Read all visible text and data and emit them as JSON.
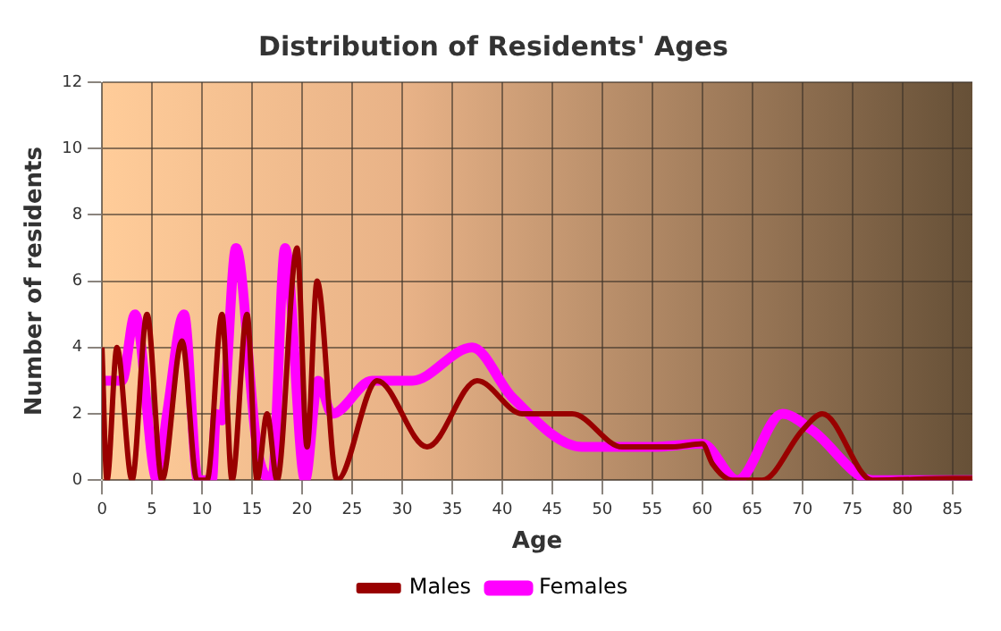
{
  "chart_data": {
    "type": "line",
    "title": "Distribution of Residents' Ages",
    "xlabel": "Age",
    "ylabel": "Number of residents",
    "xlim": [
      0,
      87
    ],
    "xticks": [
      0,
      5,
      10,
      15,
      20,
      25,
      30,
      35,
      40,
      45,
      50,
      55,
      60,
      65,
      70,
      75,
      80,
      85
    ],
    "ylim": [
      0,
      12
    ],
    "yticks": [
      0,
      2,
      4,
      6,
      8,
      10,
      12
    ],
    "grid": true,
    "legend": "bottom",
    "marker": "none",
    "line_style": "solid",
    "series": [
      {
        "name": "Males",
        "color": "#990000",
        "x": [
          0,
          0.5,
          1.5,
          3,
          4.5,
          6,
          8,
          9.5,
          10.5,
          12,
          13,
          14.5,
          15.5,
          16.5,
          17.5,
          19.5,
          20.5,
          21.5,
          23.5,
          27.5,
          32.5,
          37.5,
          42,
          47,
          52,
          57,
          60,
          61,
          63,
          66,
          70,
          72,
          77,
          85,
          87
        ],
        "values": [
          4,
          0,
          4,
          0,
          5,
          0,
          4.2,
          0,
          0,
          5,
          0,
          5,
          0,
          2,
          0,
          7,
          1,
          6,
          0,
          3,
          1,
          3,
          2,
          2,
          1,
          1,
          1.1,
          0.5,
          0,
          0,
          1.5,
          2,
          0,
          0.05,
          0.05
        ]
      },
      {
        "name": "Females",
        "color": "#ff00ff",
        "x": [
          0,
          2,
          3.3,
          5.5,
          6.5,
          8.2,
          9.6,
          11,
          11.4,
          12,
          13.4,
          15.5,
          17,
          18.3,
          20.3,
          21.6,
          23,
          27,
          31,
          37,
          41,
          48,
          55,
          60,
          63.5,
          68,
          71,
          77,
          87
        ],
        "values": [
          3,
          3,
          5,
          0,
          2,
          5,
          0,
          0,
          2,
          1.8,
          7,
          1,
          0,
          7,
          0,
          3,
          2,
          3,
          3,
          4,
          2.5,
          1,
          1,
          1.1,
          0,
          2,
          1.5,
          0,
          0
        ]
      }
    ]
  }
}
